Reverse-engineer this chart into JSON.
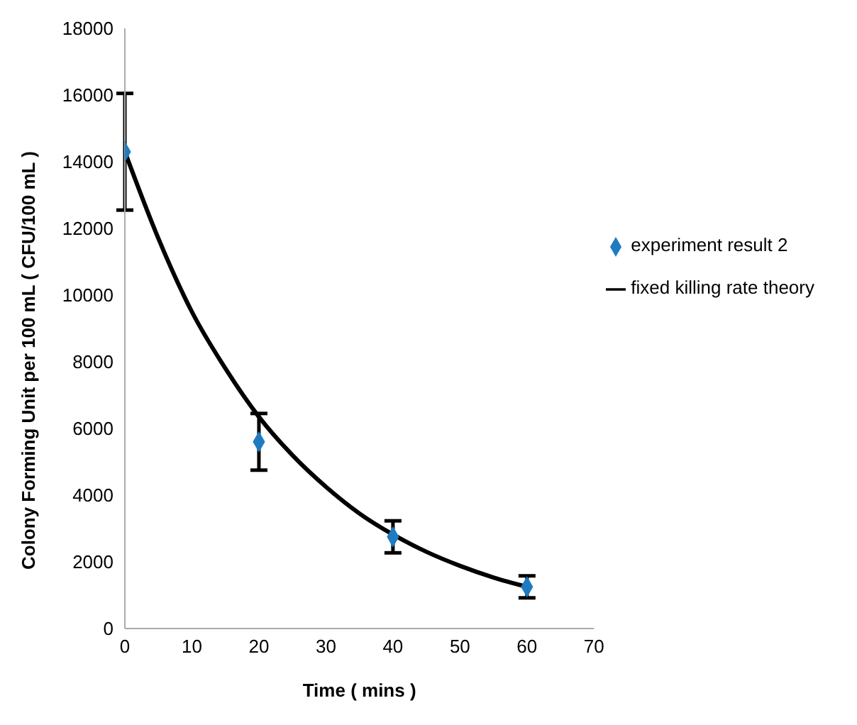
{
  "chart_data": {
    "type": "scatter",
    "xlabel": "Time ( mins )",
    "ylabel": "Colony Forming Unit per 100 mL ( CFU/100 mL )",
    "xlim": [
      0,
      70
    ],
    "xticks": [
      0,
      10,
      20,
      30,
      40,
      50,
      60,
      70
    ],
    "ylim": [
      0,
      18000
    ],
    "yticks": [
      0,
      2000,
      4000,
      6000,
      8000,
      10000,
      12000,
      14000,
      16000,
      18000
    ],
    "grid": false,
    "legend": "right",
    "series": [
      {
        "name": "experiment result 2",
        "color": "#1f7bc1",
        "marker": "diamond",
        "x": [
          0,
          20,
          40,
          60
        ],
        "values": [
          14300,
          5600,
          2750,
          1250
        ],
        "errors": [
          1750,
          850,
          480,
          330
        ]
      },
      {
        "name": "fixed killing rate theory",
        "type": "line",
        "color": "#000000",
        "marker": "none",
        "line_style": "solid",
        "x": [
          0,
          5,
          10,
          15,
          20,
          25,
          30,
          35,
          40,
          45,
          50,
          55,
          60
        ],
        "values": [
          14300,
          11700,
          9500,
          7800,
          6350,
          5200,
          4250,
          3450,
          2820,
          2300,
          1880,
          1530,
          1250
        ]
      }
    ]
  }
}
